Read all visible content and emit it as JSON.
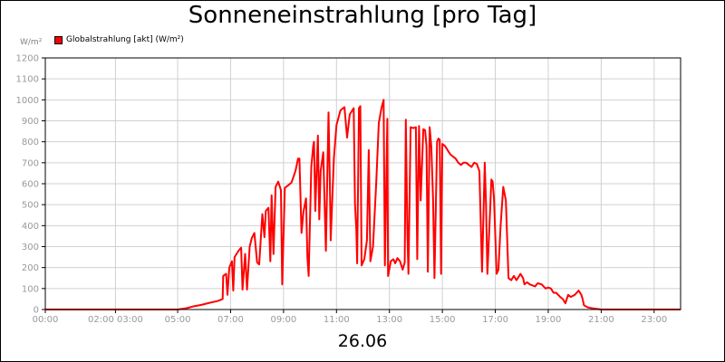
{
  "chart_data": {
    "type": "line",
    "title": "Sonneneinstrahlung [pro Tag]",
    "ylabel": "W/m²",
    "xlabel": "26.06",
    "legend_position": "top-left",
    "grid": true,
    "ylim": [
      0,
      1200
    ],
    "xlim": [
      0,
      24
    ],
    "yticks": [
      0,
      100,
      200,
      300,
      400,
      500,
      600,
      700,
      800,
      900,
      1000,
      1100,
      1200
    ],
    "xticks": [
      {
        "x": 0,
        "label": "00:00"
      },
      {
        "x": 2.65,
        "label": "02:00 03:00"
      },
      {
        "x": 5,
        "label": "05:00"
      },
      {
        "x": 7,
        "label": "07:00"
      },
      {
        "x": 9,
        "label": "09:00"
      },
      {
        "x": 11,
        "label": "11:00"
      },
      {
        "x": 13,
        "label": "13:00"
      },
      {
        "x": 15,
        "label": "15:00"
      },
      {
        "x": 17,
        "label": "17:00"
      },
      {
        "x": 19,
        "label": "19:00"
      },
      {
        "x": 21,
        "label": "21:00"
      },
      {
        "x": 23,
        "label": "23:00"
      }
    ],
    "series": [
      {
        "name": "Globalstrahlung [akt] (W/m²)",
        "color": "#ff0000",
        "points": [
          [
            0,
            0
          ],
          [
            5.0,
            0
          ],
          [
            5.3,
            5
          ],
          [
            5.6,
            15
          ],
          [
            5.9,
            22
          ],
          [
            6.2,
            32
          ],
          [
            6.5,
            40
          ],
          [
            6.7,
            50
          ],
          [
            6.72,
            160
          ],
          [
            6.83,
            170
          ],
          [
            6.88,
            70
          ],
          [
            6.95,
            200
          ],
          [
            7.05,
            230
          ],
          [
            7.1,
            90
          ],
          [
            7.15,
            250
          ],
          [
            7.3,
            280
          ],
          [
            7.4,
            295
          ],
          [
            7.45,
            95
          ],
          [
            7.55,
            265
          ],
          [
            7.62,
            95
          ],
          [
            7.72,
            300
          ],
          [
            7.8,
            340
          ],
          [
            7.9,
            365
          ],
          [
            8.0,
            225
          ],
          [
            8.08,
            215
          ],
          [
            8.2,
            455
          ],
          [
            8.28,
            345
          ],
          [
            8.33,
            470
          ],
          [
            8.43,
            485
          ],
          [
            8.5,
            230
          ],
          [
            8.55,
            545
          ],
          [
            8.62,
            265
          ],
          [
            8.7,
            585
          ],
          [
            8.8,
            610
          ],
          [
            8.9,
            570
          ],
          [
            8.95,
            120
          ],
          [
            9.05,
            580
          ],
          [
            9.15,
            590
          ],
          [
            9.3,
            605
          ],
          [
            9.45,
            660
          ],
          [
            9.55,
            720
          ],
          [
            9.6,
            720
          ],
          [
            9.68,
            365
          ],
          [
            9.75,
            465
          ],
          [
            9.85,
            530
          ],
          [
            9.9,
            250
          ],
          [
            9.95,
            160
          ],
          [
            10.05,
            680
          ],
          [
            10.12,
            780
          ],
          [
            10.15,
            800
          ],
          [
            10.2,
            470
          ],
          [
            10.25,
            660
          ],
          [
            10.3,
            830
          ],
          [
            10.35,
            430
          ],
          [
            10.4,
            660
          ],
          [
            10.5,
            750
          ],
          [
            10.55,
            520
          ],
          [
            10.6,
            280
          ],
          [
            10.7,
            940
          ],
          [
            10.75,
            600
          ],
          [
            10.78,
            330
          ],
          [
            10.9,
            720
          ],
          [
            11.0,
            880
          ],
          [
            11.15,
            950
          ],
          [
            11.3,
            965
          ],
          [
            11.4,
            820
          ],
          [
            11.5,
            930
          ],
          [
            11.6,
            950
          ],
          [
            11.65,
            960
          ],
          [
            11.7,
            505
          ],
          [
            11.75,
            380
          ],
          [
            11.78,
            220
          ],
          [
            11.85,
            960
          ],
          [
            11.9,
            970
          ],
          [
            11.95,
            210
          ],
          [
            12.05,
            240
          ],
          [
            12.15,
            330
          ],
          [
            12.22,
            760
          ],
          [
            12.28,
            230
          ],
          [
            12.38,
            300
          ],
          [
            12.5,
            600
          ],
          [
            12.6,
            890
          ],
          [
            12.7,
            960
          ],
          [
            12.78,
            1000
          ],
          [
            12.83,
            210
          ],
          [
            12.92,
            910
          ],
          [
            12.95,
            160
          ],
          [
            13.05,
            230
          ],
          [
            13.15,
            240
          ],
          [
            13.22,
            220
          ],
          [
            13.3,
            245
          ],
          [
            13.4,
            230
          ],
          [
            13.5,
            190
          ],
          [
            13.58,
            225
          ],
          [
            13.62,
            905
          ],
          [
            13.68,
            350
          ],
          [
            13.72,
            170
          ],
          [
            13.8,
            870
          ],
          [
            13.9,
            865
          ],
          [
            14.0,
            870
          ],
          [
            14.05,
            240
          ],
          [
            14.12,
            875
          ],
          [
            14.18,
            520
          ],
          [
            14.28,
            860
          ],
          [
            14.35,
            855
          ],
          [
            14.4,
            780
          ],
          [
            14.45,
            180
          ],
          [
            14.52,
            870
          ],
          [
            14.58,
            780
          ],
          [
            14.65,
            520
          ],
          [
            14.7,
            150
          ],
          [
            14.8,
            800
          ],
          [
            14.85,
            815
          ],
          [
            14.9,
            810
          ],
          [
            14.95,
            170
          ],
          [
            15.0,
            790
          ],
          [
            15.1,
            780
          ],
          [
            15.3,
            740
          ],
          [
            15.5,
            720
          ],
          [
            15.6,
            700
          ],
          [
            15.7,
            690
          ],
          [
            15.8,
            700
          ],
          [
            15.9,
            700
          ],
          [
            16.0,
            690
          ],
          [
            16.1,
            680
          ],
          [
            16.2,
            700
          ],
          [
            16.3,
            695
          ],
          [
            16.4,
            660
          ],
          [
            16.5,
            180
          ],
          [
            16.6,
            700
          ],
          [
            16.65,
            500
          ],
          [
            16.7,
            170
          ],
          [
            16.8,
            460
          ],
          [
            16.85,
            620
          ],
          [
            16.9,
            610
          ],
          [
            16.95,
            530
          ],
          [
            17.05,
            170
          ],
          [
            17.12,
            190
          ],
          [
            17.2,
            400
          ],
          [
            17.3,
            585
          ],
          [
            17.4,
            520
          ],
          [
            17.45,
            330
          ],
          [
            17.5,
            150
          ],
          [
            17.6,
            140
          ],
          [
            17.7,
            160
          ],
          [
            17.8,
            140
          ],
          [
            17.85,
            150
          ],
          [
            17.95,
            170
          ],
          [
            18.05,
            150
          ],
          [
            18.1,
            120
          ],
          [
            18.2,
            130
          ],
          [
            18.3,
            120
          ],
          [
            18.5,
            110
          ],
          [
            18.6,
            125
          ],
          [
            18.75,
            120
          ],
          [
            18.9,
            100
          ],
          [
            19.0,
            105
          ],
          [
            19.1,
            100
          ],
          [
            19.2,
            80
          ],
          [
            19.3,
            80
          ],
          [
            19.45,
            60
          ],
          [
            19.55,
            50
          ],
          [
            19.65,
            30
          ],
          [
            19.75,
            70
          ],
          [
            19.85,
            60
          ],
          [
            20.0,
            70
          ],
          [
            20.15,
            90
          ],
          [
            20.25,
            70
          ],
          [
            20.3,
            50
          ],
          [
            20.35,
            20
          ],
          [
            20.5,
            10
          ],
          [
            20.7,
            5
          ],
          [
            21.0,
            0
          ],
          [
            24.0,
            0
          ]
        ]
      }
    ]
  },
  "colors": {
    "line": "#ff0000",
    "grid": "#d0d0d0",
    "axis": "#000000",
    "tick_text": "#999999"
  }
}
